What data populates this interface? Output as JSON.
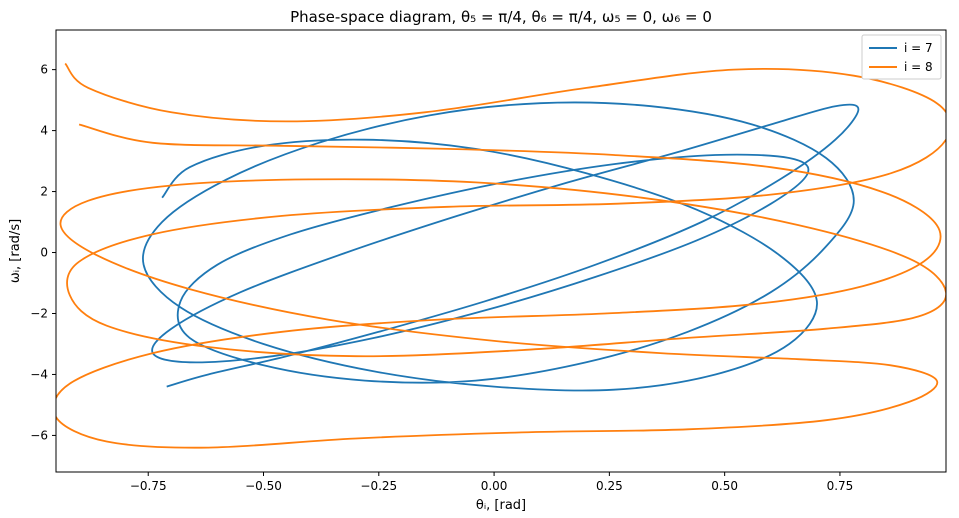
{
  "chart_data": {
    "type": "line",
    "title": "Phase-space diagram, θ₅ = π/4, θ₆ = π/4, ω₅ = 0, ω₆ = 0",
    "xlabel": "θᵢ, [rad]",
    "ylabel": "ωᵢ, [rad/s]",
    "xlim": [
      -0.95,
      0.98
    ],
    "ylim": [
      -7.2,
      7.3
    ],
    "xticks": [
      -0.75,
      -0.5,
      -0.25,
      0.0,
      0.25,
      0.5,
      0.75
    ],
    "xtick_labels": [
      "−0.75",
      "−0.50",
      "−0.25",
      "0.00",
      "0.25",
      "0.50",
      "0.75"
    ],
    "yticks": [
      -6,
      -4,
      -2,
      0,
      2,
      4,
      6
    ],
    "ytick_labels": [
      "−6",
      "−4",
      "−2",
      "0",
      "2",
      "4",
      "6"
    ],
    "grid": false,
    "legend_position": "upper right",
    "series": [
      {
        "name": "i = 7",
        "color": "#1f77b4",
        "x": [
          -0.71,
          -0.62,
          -0.45,
          -0.25,
          -0.02,
          0.22,
          0.45,
          0.62,
          0.74,
          0.79,
          0.74,
          0.6,
          0.4,
          0.16,
          -0.08,
          -0.32,
          -0.55,
          -0.7,
          -0.74,
          -0.66,
          -0.48,
          -0.26,
          -0.02,
          0.22,
          0.44,
          0.6,
          0.68,
          0.64,
          0.48,
          0.26,
          0.02,
          -0.22,
          -0.44,
          -0.6,
          -0.68,
          -0.66,
          -0.5,
          -0.28,
          -0.04,
          0.2,
          0.42,
          0.6,
          0.72,
          0.78,
          0.72,
          0.56,
          0.34,
          0.1,
          -0.14,
          -0.38,
          -0.58,
          -0.72,
          -0.76,
          -0.68,
          -0.5,
          -0.26,
          0.0,
          0.26,
          0.48,
          0.64,
          0.7,
          0.62,
          0.44,
          0.2,
          -0.04,
          -0.28,
          -0.5,
          -0.66,
          -0.72
        ],
        "y": [
          -4.4,
          -4.0,
          -3.4,
          -2.6,
          -1.6,
          -0.4,
          1.0,
          2.4,
          3.7,
          4.7,
          4.8,
          4.2,
          3.3,
          2.3,
          1.2,
          0.0,
          -1.3,
          -2.5,
          -3.3,
          -3.6,
          -3.4,
          -2.8,
          -1.9,
          -0.8,
          0.4,
          1.6,
          2.6,
          3.1,
          3.2,
          2.9,
          2.3,
          1.5,
          0.6,
          -0.4,
          -1.6,
          -2.8,
          -3.7,
          -4.2,
          -4.2,
          -3.6,
          -2.6,
          -1.3,
          0.2,
          1.7,
          3.1,
          4.2,
          4.8,
          4.9,
          4.5,
          3.6,
          2.4,
          1.0,
          -0.4,
          -1.8,
          -3.0,
          -3.9,
          -4.4,
          -4.5,
          -4.0,
          -3.0,
          -1.6,
          -0.1,
          1.4,
          2.6,
          3.4,
          3.7,
          3.5,
          2.8,
          1.8
        ]
      },
      {
        "name": "i = 8",
        "color": "#ff7f0e",
        "x": [
          -0.93,
          -0.88,
          -0.7,
          -0.45,
          -0.15,
          0.2,
          0.52,
          0.78,
          0.96,
          0.98,
          0.86,
          0.6,
          0.26,
          -0.1,
          -0.46,
          -0.74,
          -0.9,
          -0.92,
          -0.84,
          -0.62,
          -0.3,
          0.06,
          0.42,
          0.72,
          0.92,
          0.98,
          0.9,
          0.66,
          0.32,
          -0.04,
          -0.4,
          -0.7,
          -0.88,
          -0.94,
          -0.86,
          -0.66,
          -0.36,
          0.0,
          0.36,
          0.66,
          0.86,
          0.96,
          0.9,
          0.72,
          0.42,
          0.06,
          -0.3,
          -0.62,
          -0.84,
          -0.95,
          -0.92,
          -0.74,
          -0.46,
          -0.12,
          0.24,
          0.56,
          0.8,
          0.94,
          0.96,
          0.84,
          0.6,
          0.26,
          -0.1,
          -0.46,
          -0.74,
          -0.9
        ],
        "y": [
          6.2,
          5.4,
          4.6,
          4.3,
          4.6,
          5.4,
          6.0,
          5.8,
          4.9,
          3.7,
          2.6,
          1.9,
          1.6,
          1.5,
          1.2,
          0.6,
          -0.3,
          -1.4,
          -2.4,
          -3.1,
          -3.4,
          -3.2,
          -2.8,
          -2.5,
          -2.1,
          -1.3,
          -0.2,
          0.9,
          1.8,
          2.3,
          2.4,
          2.2,
          1.7,
          0.9,
          -0.1,
          -1.2,
          -2.2,
          -2.9,
          -3.3,
          -3.5,
          -3.7,
          -4.2,
          -4.9,
          -5.5,
          -5.8,
          -5.9,
          -6.1,
          -6.4,
          -6.2,
          -5.4,
          -4.3,
          -3.3,
          -2.6,
          -2.2,
          -2.0,
          -1.7,
          -1.1,
          -0.2,
          0.9,
          2.0,
          2.8,
          3.2,
          3.4,
          3.5,
          3.6,
          4.2
        ]
      }
    ]
  }
}
